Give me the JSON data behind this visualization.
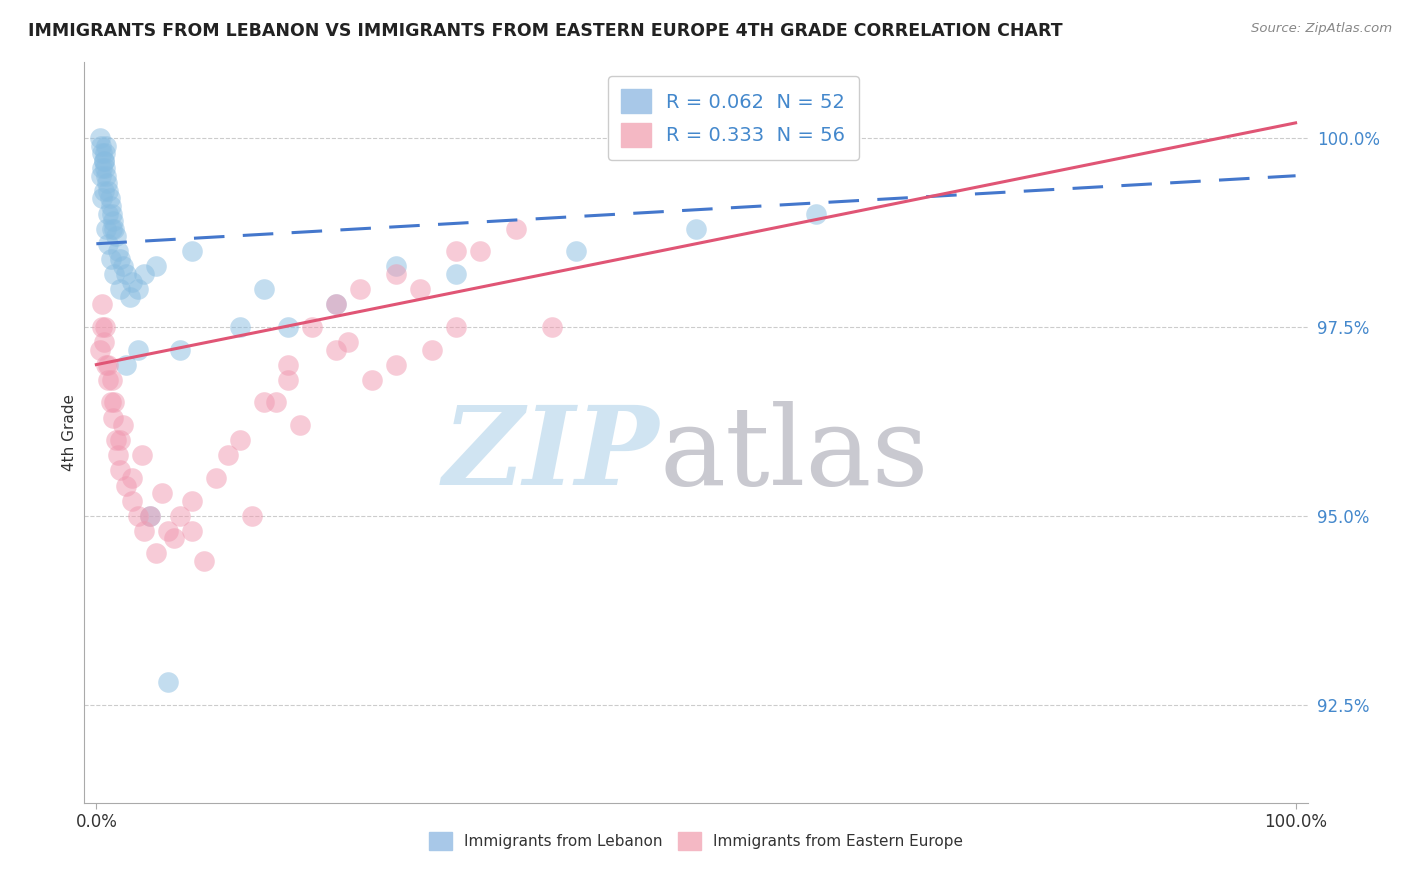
{
  "title": "IMMIGRANTS FROM LEBANON VS IMMIGRANTS FROM EASTERN EUROPE 4TH GRADE CORRELATION CHART",
  "source": "Source: ZipAtlas.com",
  "ylabel": "4th Grade",
  "ytick_values": [
    92.5,
    95.0,
    97.5,
    100.0
  ],
  "ytick_labels": [
    "92.5%",
    "95.0%",
    "97.5%",
    "100.0%"
  ],
  "xtick_values": [
    0,
    100
  ],
  "xtick_labels": [
    "0.0%",
    "100.0%"
  ],
  "legend_blue_label": "R = 0.062  N = 52",
  "legend_pink_label": "R = 0.333  N = 56",
  "legend_blue_color": "#a8c8e8",
  "legend_pink_color": "#f4b8c4",
  "lebanon_color": "#88bce0",
  "eastern_color": "#f099b0",
  "lebanon_trend_color": "#4477cc",
  "eastern_trend_color": "#e05575",
  "watermark_zip_color": "#c8e0f0",
  "watermark_atlas_color": "#c0c0c8",
  "xlim": [
    -1,
    101
  ],
  "ylim": [
    91.2,
    101.0
  ],
  "blue_x": [
    0.3,
    0.4,
    0.5,
    0.6,
    0.7,
    0.8,
    0.9,
    1.0,
    1.1,
    1.2,
    1.3,
    1.4,
    1.5,
    1.6,
    1.8,
    2.0,
    2.2,
    2.5,
    3.0,
    3.5,
    4.0,
    5.0,
    0.4,
    0.5,
    0.6,
    0.7,
    0.8,
    1.0,
    1.2,
    1.5,
    2.0,
    2.8,
    0.5,
    0.6,
    0.8,
    1.0,
    1.3,
    8.0,
    14.0,
    16.0,
    20.0,
    30.0,
    40.0,
    50.0,
    60.0,
    7.0,
    12.0,
    2.5,
    3.5,
    4.5,
    25.0,
    6.0
  ],
  "blue_y": [
    100.0,
    99.9,
    99.8,
    99.7,
    99.6,
    99.5,
    99.4,
    99.3,
    99.2,
    99.1,
    99.0,
    98.9,
    98.8,
    98.7,
    98.5,
    98.4,
    98.3,
    98.2,
    98.1,
    98.0,
    98.2,
    98.3,
    99.5,
    99.6,
    99.7,
    99.8,
    99.9,
    98.6,
    98.4,
    98.2,
    98.0,
    97.9,
    99.2,
    99.3,
    98.8,
    99.0,
    98.8,
    98.5,
    98.0,
    97.5,
    97.8,
    98.2,
    98.5,
    98.8,
    99.0,
    97.2,
    97.5,
    97.0,
    97.2,
    95.0,
    98.3,
    92.8
  ],
  "pink_x": [
    0.3,
    0.5,
    0.6,
    0.8,
    1.0,
    1.2,
    1.4,
    1.6,
    1.8,
    2.0,
    2.5,
    3.0,
    3.5,
    4.0,
    5.0,
    6.0,
    7.0,
    8.0,
    10.0,
    12.0,
    14.0,
    16.0,
    18.0,
    20.0,
    22.0,
    25.0,
    30.0,
    35.0,
    0.5,
    1.0,
    1.5,
    2.0,
    3.0,
    4.5,
    6.5,
    9.0,
    13.0,
    17.0,
    23.0,
    28.0,
    38.0,
    0.7,
    1.3,
    2.2,
    3.8,
    5.5,
    8.0,
    11.0,
    15.0,
    21.0,
    27.0,
    32.0,
    20.0,
    25.0,
    30.0,
    16.0
  ],
  "pink_y": [
    97.2,
    97.5,
    97.3,
    97.0,
    96.8,
    96.5,
    96.3,
    96.0,
    95.8,
    95.6,
    95.4,
    95.2,
    95.0,
    94.8,
    94.5,
    94.8,
    95.0,
    95.2,
    95.5,
    96.0,
    96.5,
    97.0,
    97.5,
    97.8,
    98.0,
    98.2,
    98.5,
    98.8,
    97.8,
    97.0,
    96.5,
    96.0,
    95.5,
    95.0,
    94.7,
    94.4,
    95.0,
    96.2,
    96.8,
    97.2,
    97.5,
    97.5,
    96.8,
    96.2,
    95.8,
    95.3,
    94.8,
    95.8,
    96.5,
    97.3,
    98.0,
    98.5,
    97.2,
    97.0,
    97.5,
    96.8
  ],
  "blue_trend_x0": 0,
  "blue_trend_y0": 98.6,
  "blue_trend_x1": 100,
  "blue_trend_y1": 99.5,
  "pink_trend_x0": 0,
  "pink_trend_y0": 97.0,
  "pink_trend_x1": 100,
  "pink_trend_y1": 100.2
}
